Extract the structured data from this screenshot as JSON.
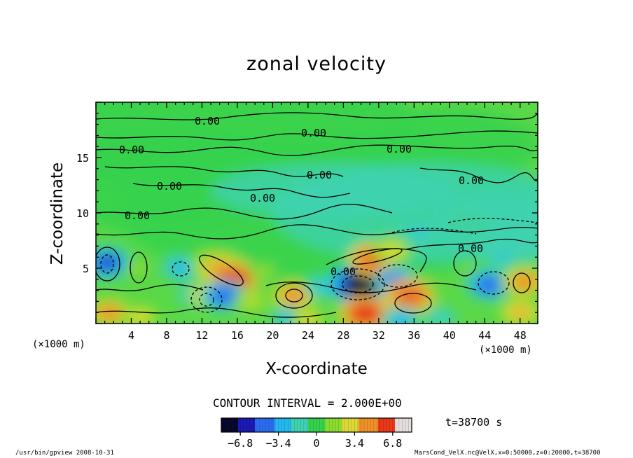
{
  "chart_data": {
    "type": "heatmap",
    "title": "zonal velocity",
    "xlabel": "X-coordinate",
    "ylabel": "Z-coordinate",
    "x_unit": "(×1000 m)",
    "xlim": [
      0,
      50
    ],
    "ylim": [
      0,
      20
    ],
    "x_ticks": [
      4,
      8,
      12,
      16,
      20,
      24,
      28,
      32,
      36,
      40,
      44,
      48
    ],
    "y_ticks": [
      5,
      10,
      15
    ],
    "contour_interval": "CONTOUR INTERVAL = 2.000E+00",
    "contour_labels": [
      "0.00",
      "0.00",
      "0.00",
      "0.00",
      "0.00",
      "0.00",
      "0.00",
      "0.00",
      "0.00",
      "0.00",
      "0.00"
    ],
    "time_label": "t=38700 s",
    "colorbar": {
      "range": [
        -8.5,
        8.5
      ],
      "tick_labels": [
        "−6.8",
        "−3.4",
        "0",
        "3.4",
        "6.8"
      ],
      "tick_values": [
        -6.8,
        -3.4,
        0,
        3.4,
        6.8
      ],
      "colors": [
        "#08082e",
        "#1a1ab4",
        "#2c6cf0",
        "#22b8f0",
        "#3fd2b2",
        "#36d24e",
        "#8cdc30",
        "#dcd838",
        "#f09028",
        "#e83818",
        "#e6dede"
      ]
    },
    "features": [
      {
        "x": 1.3,
        "z": 5.5,
        "value": -5.5
      },
      {
        "x": 4.8,
        "z": 5.0,
        "value": 1.5
      },
      {
        "x": 9.5,
        "z": 5.0,
        "value": -3.0
      },
      {
        "x": 11.5,
        "z": 2.6,
        "value": -3.5
      },
      {
        "x": 12.8,
        "z": 2.6,
        "value": 4.0
      },
      {
        "x": 13.0,
        "z": 5.4,
        "value": 3.5
      },
      {
        "x": 14.0,
        "z": 5.0,
        "value": 5.5
      },
      {
        "x": 15.5,
        "z": 4.0,
        "value": 6.5
      },
      {
        "x": 14.5,
        "z": 2.5,
        "value": -5.0
      },
      {
        "x": 17.5,
        "z": 2.0,
        "value": 2.5
      },
      {
        "x": 19.0,
        "z": 4.7,
        "value": 1.5
      },
      {
        "x": 22.4,
        "z": 2.5,
        "value": 5.0
      },
      {
        "x": 22.0,
        "z": 0.5,
        "value": -3.0
      },
      {
        "x": 25.5,
        "z": 3.3,
        "value": -2.5
      },
      {
        "x": 30.0,
        "z": 3.5,
        "value": -8.0
      },
      {
        "x": 31.5,
        "z": 5.8,
        "value": 6.0
      },
      {
        "x": 33.5,
        "z": 6.6,
        "value": 3.5
      },
      {
        "x": 30.5,
        "z": 0.9,
        "value": 6.5
      },
      {
        "x": 34.0,
        "z": 3.8,
        "value": -4.5
      },
      {
        "x": 35.5,
        "z": 2.5,
        "value": 6.0
      },
      {
        "x": 34.5,
        "z": 0.3,
        "value": -3.5
      },
      {
        "x": 42.0,
        "z": 5.0,
        "value": 1.0
      },
      {
        "x": 44.5,
        "z": 3.5,
        "value": -5.0
      },
      {
        "x": 46.0,
        "z": 6.0,
        "value": -2.5
      },
      {
        "x": 48.5,
        "z": 3.8,
        "value": 5.0
      },
      {
        "x": 48.0,
        "z": 1.0,
        "value": 4.0
      },
      {
        "x": 49.0,
        "z": 6.5,
        "value": -2.0
      },
      {
        "x": 1.5,
        "z": 1.0,
        "value": 4.5
      },
      {
        "x": 5.0,
        "z": 0.6,
        "value": 3.0
      },
      {
        "x": 39.0,
        "z": 0.5,
        "value": -2.0
      },
      {
        "x": 24.0,
        "z": 0.3,
        "value": 3.0
      },
      {
        "x": 36.5,
        "z": 8.2,
        "value": -2.5
      },
      {
        "x": 42.0,
        "z": 9.0,
        "value": -1.6
      },
      {
        "x": 30.5,
        "z": 8.8,
        "value": -1.2
      }
    ]
  },
  "footer": {
    "left": "/usr/bin/gpview   2008-10-31",
    "right": "MarsCond_VelX.nc@VelX,x=0:50000,z=0:20000,t=38700"
  }
}
